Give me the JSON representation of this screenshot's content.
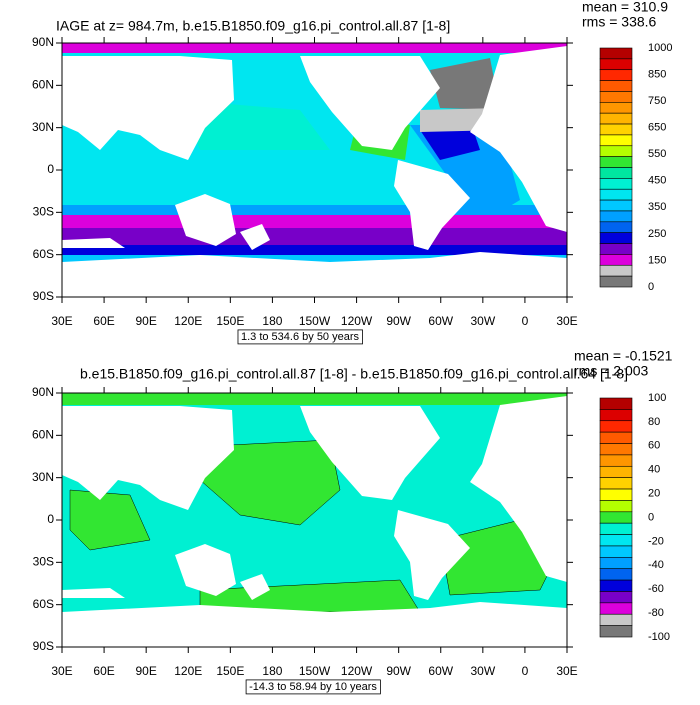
{
  "maps": [
    {
      "title": "IAGE at z= 984.7m, b.e15.B1850.f09_g16.pi_control.all.87 [1-8]",
      "stats": [
        "mean = 310.9",
        "rms = 338.6"
      ],
      "info": "1.3 to 534.6 by 50 years",
      "colorbar": {
        "labels": [
          "1000",
          "850",
          "750",
          "650",
          "550",
          "450",
          "350",
          "250",
          "150",
          "0"
        ],
        "colors": [
          "#b40000",
          "#dc0000",
          "#ff2800",
          "#ff5a00",
          "#ff7800",
          "#ff9600",
          "#ffb400",
          "#ffd200",
          "#ffff00",
          "#b4ff00",
          "#32e632",
          "#00e6a0",
          "#00f0d2",
          "#00e6f0",
          "#00c8ff",
          "#00a0ff",
          "#0064f0",
          "#0000dc",
          "#7800c8",
          "#dc00dc",
          "#c8c8c8",
          "#787878"
        ]
      }
    },
    {
      "title": "b.e15.B1850.f09_g16.pi_control.all.87 [1-8] - b.e15.B1850.f09_g16.pi_control.all.64 [1-8]",
      "stats": [
        "mean = -0.1521",
        "rms = 2.003"
      ],
      "info": "-14.3 to 58.94 by 10 years",
      "colorbar": {
        "labels": [
          "100",
          "80",
          "60",
          "40",
          "20",
          "0",
          "-20",
          "-40",
          "-60",
          "-80",
          "-100"
        ],
        "colors": [
          "#b40000",
          "#dc0000",
          "#ff2800",
          "#ff5a00",
          "#ff7800",
          "#ff9600",
          "#ffb400",
          "#ffd200",
          "#ffff00",
          "#b4ff00",
          "#32e632",
          "#00f0d2",
          "#00e6f0",
          "#00c8ff",
          "#00a0ff",
          "#0064f0",
          "#0000dc",
          "#7800c8",
          "#dc00dc",
          "#c8c8c8",
          "#787878"
        ]
      }
    }
  ],
  "lat_labels": [
    "90N",
    "60N",
    "30N",
    "0",
    "30S",
    "60S",
    "90S"
  ],
  "lon_labels": [
    "30E",
    "60E",
    "90E",
    "120E",
    "150E",
    "180",
    "150W",
    "120W",
    "90W",
    "60W",
    "30W",
    "0",
    "30E"
  ]
}
